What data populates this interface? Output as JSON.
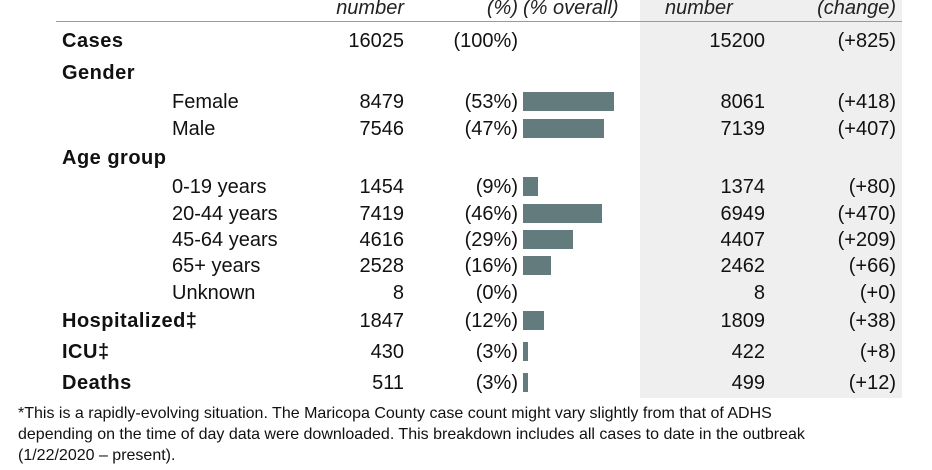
{
  "header": {
    "number_1": "number",
    "pct": "(%)",
    "pct_overall": "(% overall)",
    "number_2": "number",
    "change": "(change)"
  },
  "rows": [
    {
      "label": "Cases",
      "kind": "category",
      "number": "16025",
      "pct": "(100%)",
      "bar": null,
      "prev_number": "15200",
      "change": "(+825)"
    },
    {
      "label": "Gender",
      "kind": "category",
      "number": "",
      "pct": "",
      "bar": null,
      "prev_number": "",
      "change": ""
    },
    {
      "label": "Female",
      "kind": "sub",
      "number": "8479",
      "pct": "(53%)",
      "bar": 53,
      "prev_number": "8061",
      "change": "(+418)"
    },
    {
      "label": "Male",
      "kind": "sub",
      "number": "7546",
      "pct": "(47%)",
      "bar": 47,
      "prev_number": "7139",
      "change": "(+407)"
    },
    {
      "label": "Age group",
      "kind": "category",
      "number": "",
      "pct": "",
      "bar": null,
      "prev_number": "",
      "change": ""
    },
    {
      "label": "0-19 years",
      "kind": "sub",
      "number": "1454",
      "pct": "(9%)",
      "bar": 9,
      "prev_number": "1374",
      "change": "(+80)"
    },
    {
      "label": "20-44 years",
      "kind": "sub",
      "number": "7419",
      "pct": "(46%)",
      "bar": 46,
      "prev_number": "6949",
      "change": "(+470)"
    },
    {
      "label": "45-64 years",
      "kind": "sub",
      "number": "4616",
      "pct": "(29%)",
      "bar": 29,
      "prev_number": "4407",
      "change": "(+209)"
    },
    {
      "label": "65+ years",
      "kind": "sub",
      "number": "2528",
      "pct": "(16%)",
      "bar": 16,
      "prev_number": "2462",
      "change": "(+66)"
    },
    {
      "label": "Unknown",
      "kind": "sub",
      "number": "8",
      "pct": "(0%)",
      "bar": 0,
      "prev_number": "8",
      "change": "(+0)"
    },
    {
      "label": "Hospitalized‡",
      "kind": "category",
      "number": "1847",
      "pct": "(12%)",
      "bar": 12,
      "prev_number": "1809",
      "change": "(+38)"
    },
    {
      "label": "ICU‡",
      "kind": "category",
      "number": "430",
      "pct": "(3%)",
      "bar": 3,
      "prev_number": "422",
      "change": "(+8)"
    },
    {
      "label": "Deaths",
      "kind": "category",
      "number": "511",
      "pct": "(3%)",
      "bar": 3,
      "prev_number": "499",
      "change": "(+12)"
    }
  ],
  "colors": {
    "bar": "#647b7d",
    "shade": "#efefef"
  },
  "footnote": [
    "*This is a rapidly-evolving situation.  The Maricopa County case count might vary slightly from that of ADHS",
    "depending on the time of day data were downloaded.  This breakdown includes all cases to date in the outbreak",
    "(1/22/2020 – present)."
  ]
}
